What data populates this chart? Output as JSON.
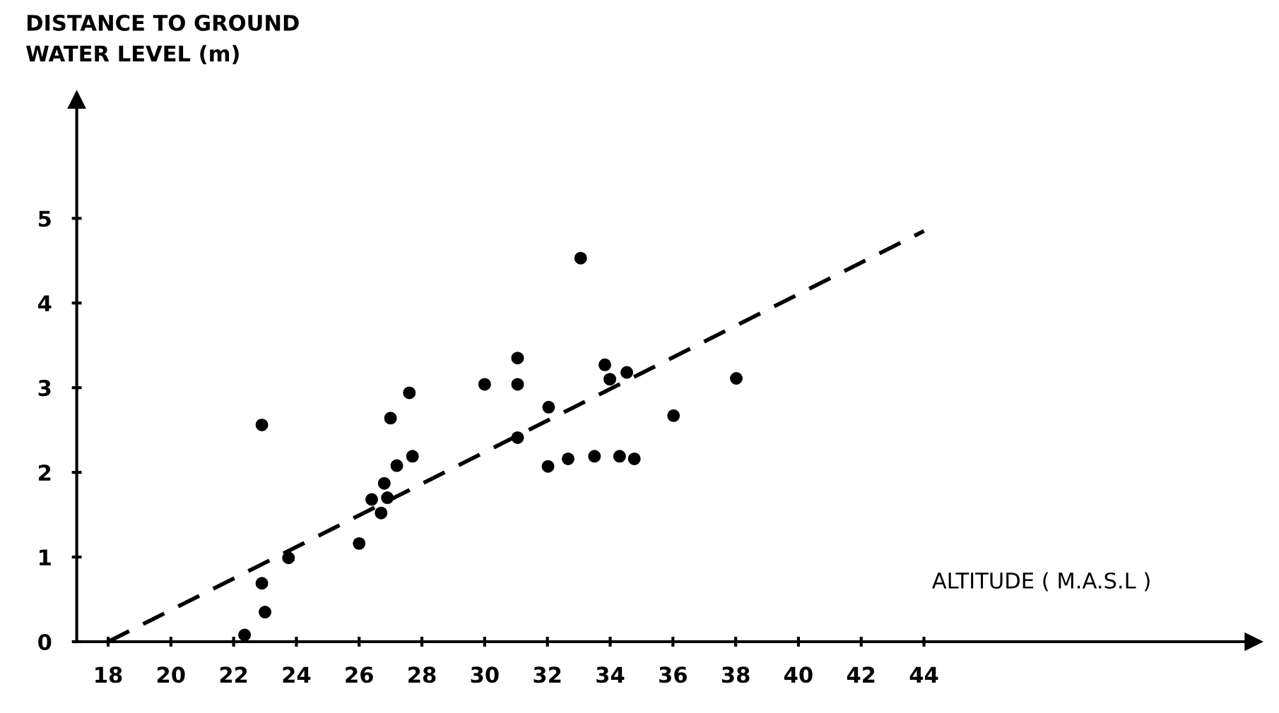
{
  "chart_data": {
    "type": "scatter",
    "ylabel": "DISTANCE TO GROUND\nWATER LEVEL (m)",
    "xlabel": "ALTITUDE ( M.A.S.L )",
    "xlim": [
      17,
      54.5
    ],
    "ylim": [
      0,
      6.4
    ],
    "xticks": [
      18,
      20,
      22,
      24,
      26,
      28,
      30,
      32,
      34,
      36,
      38,
      40,
      42,
      44
    ],
    "yticks": [
      0,
      1,
      2,
      3,
      4,
      5
    ],
    "grid": false,
    "legend": false,
    "series": [
      {
        "color": "#000000",
        "marker": "circle",
        "x": [
          22.35,
          22.9,
          22.9,
          23.0,
          23.75,
          26.0,
          26.4,
          26.7,
          26.8,
          26.9,
          27.0,
          27.2,
          27.6,
          27.7,
          30.0,
          31.05,
          31.05,
          31.05,
          32.04,
          32.02,
          32.66,
          33.06,
          33.5,
          33.83,
          33.99,
          34.3,
          34.53,
          34.77,
          36.02,
          38.02
        ],
        "values": [
          0.08,
          2.56,
          0.69,
          0.35,
          0.99,
          1.16,
          1.68,
          1.52,
          1.87,
          1.7,
          2.64,
          2.08,
          2.94,
          2.19,
          3.04,
          3.35,
          3.04,
          2.41,
          2.77,
          2.07,
          2.16,
          4.53,
          2.19,
          3.27,
          3.1,
          2.19,
          3.18,
          2.16,
          2.67,
          3.11
        ]
      },
      {
        "type": "line",
        "color": "#000000",
        "line_style": "dashed",
        "marker": "none",
        "x": [
          18,
          44
        ],
        "values": [
          0,
          4.85
        ]
      }
    ]
  }
}
